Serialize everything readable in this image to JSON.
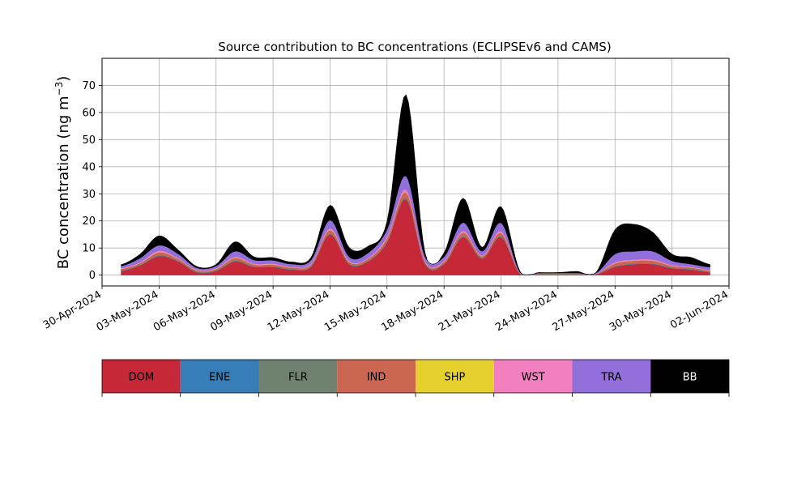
{
  "chart_data": {
    "type": "area",
    "stacked": true,
    "title": "Source contribution to BC concentrations (ECLIPSEv6 and CAMS)",
    "ylabel": "BC concentration (ng m",
    "ylabel_sup": "−3",
    "ylabel_close": ")",
    "xlabel": "",
    "grid": true,
    "xlim": [
      "2024-04-30",
      "2024-06-02"
    ],
    "ylim": [
      -4,
      80
    ],
    "x_ticks": [
      {
        "date": "2024-04-30",
        "label": "30-Apr-2024"
      },
      {
        "date": "2024-05-03",
        "label": "03-May-2024"
      },
      {
        "date": "2024-05-06",
        "label": "06-May-2024"
      },
      {
        "date": "2024-05-09",
        "label": "09-May-2024"
      },
      {
        "date": "2024-05-12",
        "label": "12-May-2024"
      },
      {
        "date": "2024-05-15",
        "label": "15-May-2024"
      },
      {
        "date": "2024-05-18",
        "label": "18-May-2024"
      },
      {
        "date": "2024-05-21",
        "label": "21-May-2024"
      },
      {
        "date": "2024-05-24",
        "label": "24-May-2024"
      },
      {
        "date": "2024-05-27",
        "label": "27-May-2024"
      },
      {
        "date": "2024-05-30",
        "label": "30-May-2024"
      },
      {
        "date": "2024-06-02",
        "label": "02-Jun-2024"
      }
    ],
    "y_ticks": [
      {
        "value": 0,
        "label": "0"
      },
      {
        "value": 10,
        "label": "10"
      },
      {
        "value": 20,
        "label": "20"
      },
      {
        "value": 30,
        "label": "30"
      },
      {
        "value": 40,
        "label": "40"
      },
      {
        "value": 50,
        "label": "50"
      },
      {
        "value": 60,
        "label": "60"
      },
      {
        "value": 70,
        "label": "70"
      }
    ],
    "dates": [
      "2024-05-01",
      "2024-05-02",
      "2024-05-03",
      "2024-05-04",
      "2024-05-05",
      "2024-05-06",
      "2024-05-07",
      "2024-05-08",
      "2024-05-09",
      "2024-05-10",
      "2024-05-11",
      "2024-05-12",
      "2024-05-13",
      "2024-05-14",
      "2024-05-15",
      "2024-05-16",
      "2024-05-17",
      "2024-05-18",
      "2024-05-19",
      "2024-05-20",
      "2024-05-21",
      "2024-05-22",
      "2024-05-23",
      "2024-05-24",
      "2024-05-25",
      "2024-05-26",
      "2024-05-27",
      "2024-05-28",
      "2024-05-29",
      "2024-05-30",
      "2024-05-31",
      "2024-06-01"
    ],
    "series": [
      {
        "name": "DOM",
        "color": "#c62837",
        "text_color": "#000000",
        "values": [
          1.5,
          3.5,
          7,
          5,
          1,
          1.5,
          5,
          3,
          3,
          2,
          3,
          15,
          4,
          5,
          12,
          28,
          4,
          4,
          14,
          6,
          14,
          0.5,
          0.3,
          0.3,
          0.3,
          0.3,
          3,
          4,
          4,
          2.5,
          2,
          1
        ]
      },
      {
        "name": "ENE",
        "color": "#377eb8",
        "text_color": "#000000",
        "values": [
          0.1,
          0.1,
          0.1,
          0.1,
          0.1,
          0.1,
          0.1,
          0.1,
          0.1,
          0.1,
          0.1,
          0.1,
          0.1,
          0.1,
          0.1,
          0.1,
          0.1,
          0.1,
          0.1,
          0.1,
          0.1,
          0.05,
          0.05,
          0.05,
          0.05,
          0.05,
          0.1,
          0.1,
          0.1,
          0.1,
          0.1,
          0.1
        ]
      },
      {
        "name": "FLR",
        "color": "#6f8270",
        "text_color": "#000000",
        "values": [
          0.2,
          0.2,
          0.3,
          0.2,
          0.2,
          0.2,
          0.3,
          0.2,
          0.2,
          0.2,
          0.2,
          0.3,
          0.2,
          0.2,
          0.3,
          0.4,
          0.2,
          0.2,
          0.3,
          0.2,
          0.3,
          0.05,
          0.05,
          0.05,
          0.05,
          0.05,
          0.2,
          0.2,
          0.2,
          0.2,
          0.2,
          0.2
        ]
      },
      {
        "name": "IND",
        "color": "#cb6653",
        "text_color": "#000000",
        "values": [
          0.5,
          0.6,
          1,
          0.7,
          0.4,
          0.5,
          0.9,
          0.6,
          0.6,
          0.5,
          0.6,
          1.2,
          0.6,
          0.7,
          1.2,
          2,
          0.6,
          0.6,
          1.3,
          0.6,
          1.2,
          0.1,
          0.1,
          0.1,
          0.1,
          0.1,
          1,
          1,
          1,
          0.6,
          0.5,
          0.4
        ]
      },
      {
        "name": "SHP",
        "color": "#e5d02e",
        "text_color": "#000000",
        "values": [
          0.05,
          0.05,
          0.1,
          0.05,
          0.05,
          0.05,
          0.1,
          0.05,
          0.05,
          0.05,
          0.05,
          0.1,
          0.05,
          0.05,
          0.1,
          0.1,
          0.05,
          0.05,
          0.1,
          0.05,
          0.1,
          0.02,
          0.02,
          0.02,
          0.02,
          0.02,
          0.05,
          0.05,
          0.05,
          0.05,
          0.05,
          0.05
        ]
      },
      {
        "name": "WST",
        "color": "#f27fbf",
        "text_color": "#000000",
        "values": [
          0.2,
          0.3,
          0.5,
          0.3,
          0.2,
          0.2,
          0.4,
          0.3,
          0.3,
          0.2,
          0.3,
          0.6,
          0.3,
          0.3,
          0.6,
          1,
          0.3,
          0.3,
          0.6,
          0.3,
          0.6,
          0.05,
          0.05,
          0.05,
          0.05,
          0.05,
          0.4,
          0.4,
          0.4,
          0.3,
          0.2,
          0.2
        ]
      },
      {
        "name": "TRA",
        "color": "#936fdc",
        "text_color": "#000000",
        "values": [
          0.8,
          1.5,
          2,
          1.5,
          0.7,
          0.8,
          2,
          1.3,
          1.2,
          1,
          1.3,
          3,
          1.5,
          1.8,
          2.5,
          5,
          1.5,
          1.5,
          3,
          1.5,
          3,
          0.2,
          0.2,
          0.2,
          0.2,
          0.2,
          3,
          3,
          3,
          1.5,
          1,
          1
        ]
      },
      {
        "name": "BB",
        "color": "#000000",
        "text_color": "#ffffff",
        "values": [
          0.5,
          1.5,
          3.5,
          1.5,
          0.5,
          0.6,
          3.5,
          1.2,
          1,
          0.8,
          1,
          5.5,
          3.5,
          2.5,
          3,
          30,
          1.5,
          1.5,
          9,
          1.5,
          6,
          0.4,
          0.2,
          0.2,
          0.6,
          0.2,
          9,
          10,
          7,
          2.5,
          2.5,
          1
        ]
      }
    ],
    "legend_position": "below"
  }
}
